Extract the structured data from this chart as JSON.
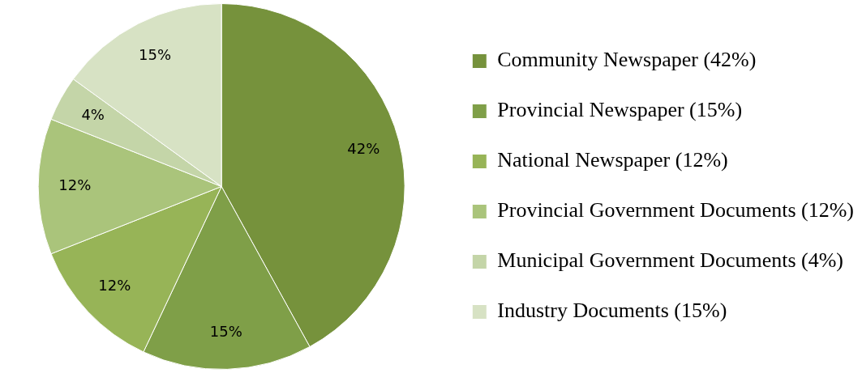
{
  "chart_data": {
    "type": "pie",
    "categories": [
      "Community Newspaper (42%)",
      "Provincial Newspaper (15%)",
      "National Newspaper (12%)",
      "Provincial Government Documents (12%)",
      "Municipal Government Documents (4%)",
      "Industry Documents (15%)"
    ],
    "values": [
      42,
      15,
      12,
      12,
      4,
      15
    ],
    "colors": [
      "#76923c",
      "#7f9f48",
      "#97b457",
      "#aac47b",
      "#c4d5a8",
      "#d7e2c4"
    ],
    "value_labels": [
      "42%",
      "15%",
      "12%",
      "12%",
      "4%",
      "15%"
    ],
    "legend": "right"
  }
}
